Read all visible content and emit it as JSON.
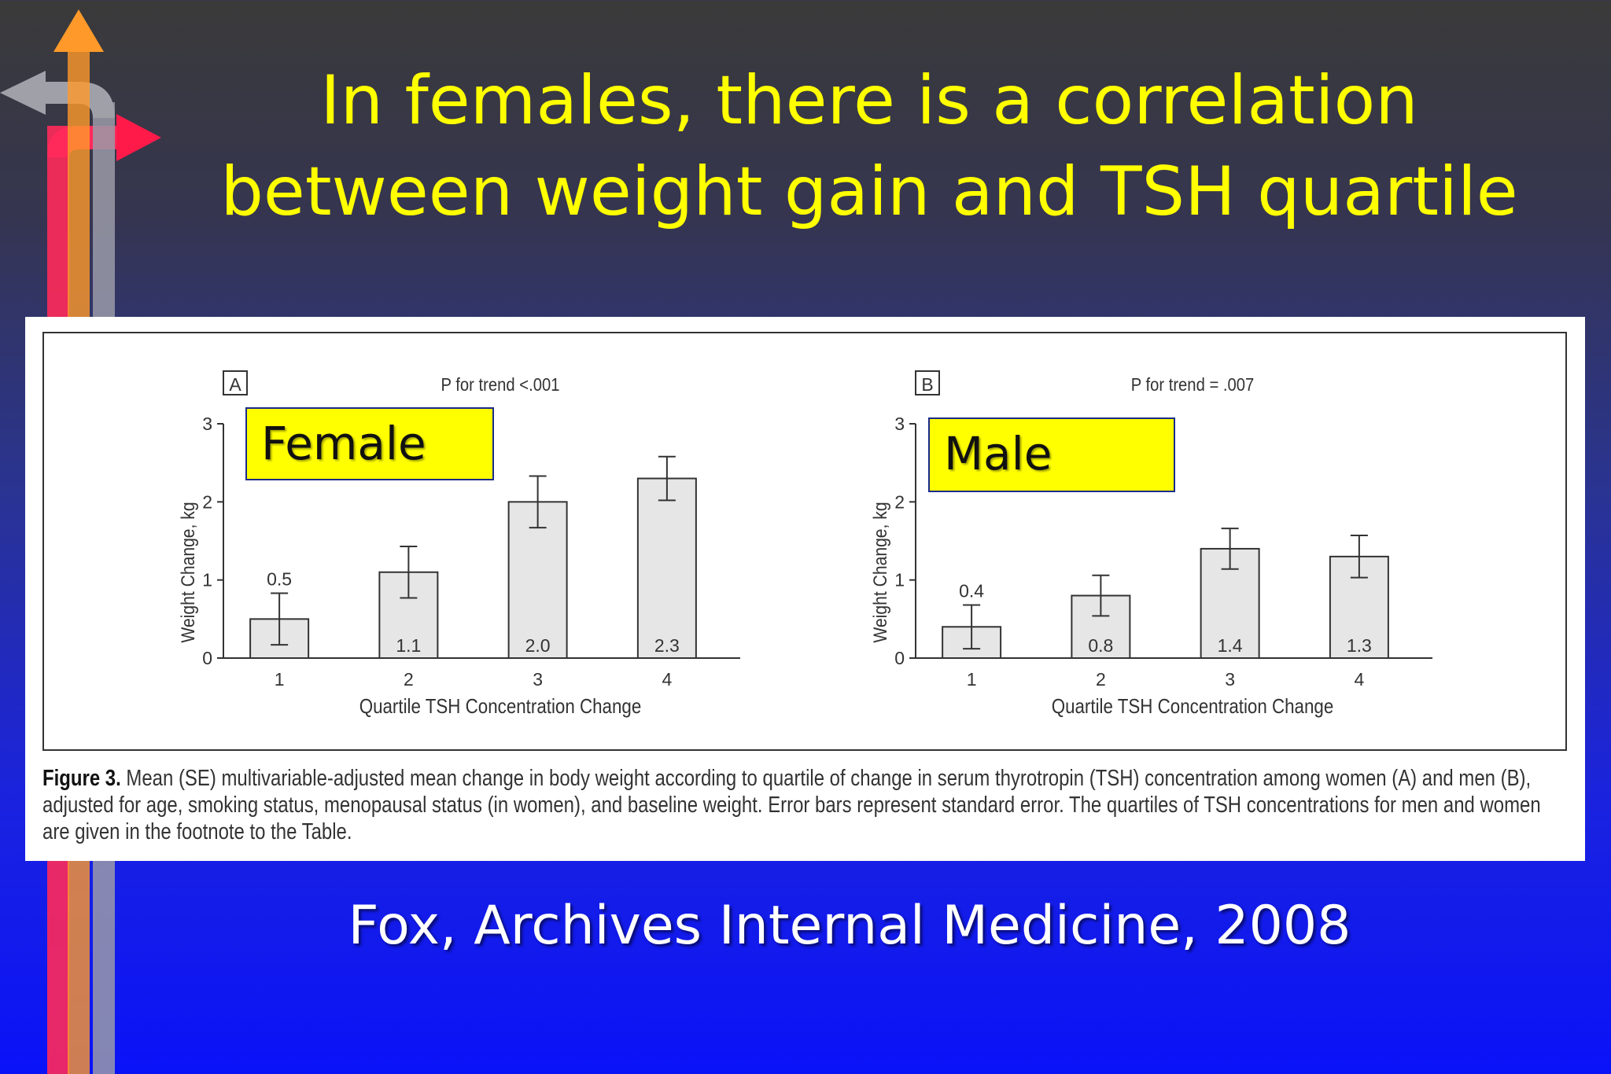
{
  "slide": {
    "title_line1": "In females, there is a correlation",
    "title_line2": "between weight gain and TSH quartile",
    "citation": "Fox, Archives Internal Medicine, 2008"
  },
  "caption": {
    "label": "Figure 3.",
    "text": " Mean (SE) multivariable-adjusted mean change in body weight according to quartile of change in serum thyrotropin (TSH) concentration among women (A) and men (B), adjusted for age, smoking status, menopausal status (in women), and baseline weight. Error bars represent standard error. The quartiles of TSH concentrations for men and women are given in the footnote to the Table."
  },
  "callouts": {
    "female": "Female",
    "male": "Male"
  },
  "colors": {
    "title": "#ffff00",
    "callout_bg": "#ffff00",
    "bar_fill": "#e6e6e6"
  },
  "chart_data": [
    {
      "type": "bar",
      "panel_label": "A",
      "title": "P for trend <.001",
      "categories": [
        "1",
        "2",
        "3",
        "4"
      ],
      "values": [
        0.5,
        1.1,
        2.0,
        2.3
      ],
      "data_labels": [
        "0.5",
        "1.1",
        "2.0",
        "2.3"
      ],
      "error": [
        0.33,
        0.33,
        0.33,
        0.28
      ],
      "xlabel": "Quartile TSH Concentration Change",
      "ylabel": "Weight Change, kg",
      "ylim": [
        0,
        3
      ],
      "yticks": [
        "0",
        "1",
        "2",
        "3"
      ]
    },
    {
      "type": "bar",
      "panel_label": "B",
      "title": "P for trend = .007",
      "categories": [
        "1",
        "2",
        "3",
        "4"
      ],
      "values": [
        0.4,
        0.8,
        1.4,
        1.3
      ],
      "data_labels": [
        "0.4",
        "0.8",
        "1.4",
        "1.3"
      ],
      "error": [
        0.28,
        0.26,
        0.26,
        0.27
      ],
      "xlabel": "Quartile TSH Concentration Change",
      "ylabel": "Weight Change, kg",
      "ylim": [
        0,
        3
      ],
      "yticks": [
        "0",
        "1",
        "2",
        "3"
      ]
    }
  ]
}
